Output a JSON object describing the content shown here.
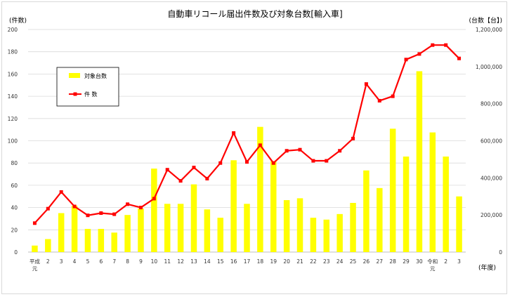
{
  "chart_data": {
    "type": "bar+line",
    "title": "自動車リコール届出件数及び対象台数[輸入車]",
    "left_axis_unit": "(件数)",
    "right_axis_unit": "(台数【台】)",
    "x_unit": "(年度)",
    "categories": [
      [
        "平成",
        "元"
      ],
      [
        "2"
      ],
      [
        "3"
      ],
      [
        "4"
      ],
      [
        "5"
      ],
      [
        "6"
      ],
      [
        "7"
      ],
      [
        "8"
      ],
      [
        "9"
      ],
      [
        "10"
      ],
      [
        "11"
      ],
      [
        "12"
      ],
      [
        "13"
      ],
      [
        "14"
      ],
      [
        "15"
      ],
      [
        "16"
      ],
      [
        "17"
      ],
      [
        "18"
      ],
      [
        "19"
      ],
      [
        "20"
      ],
      [
        "21"
      ],
      [
        "22"
      ],
      [
        "23"
      ],
      [
        "24"
      ],
      [
        "25"
      ],
      [
        "26"
      ],
      [
        "27"
      ],
      [
        "28"
      ],
      [
        "29"
      ],
      [
        "30"
      ],
      [
        "令和",
        "元"
      ],
      [
        "2"
      ],
      [
        "3"
      ]
    ],
    "series": [
      {
        "name": "対象台数",
        "axis": "right",
        "type": "bar",
        "color": "#ffff00",
        "values": [
          35000,
          70000,
          210000,
          250000,
          125000,
          125000,
          105000,
          200000,
          235000,
          450000,
          260000,
          260000,
          365000,
          230000,
          185000,
          495000,
          260000,
          675000,
          490000,
          280000,
          290000,
          185000,
          175000,
          205000,
          265000,
          440000,
          345000,
          665000,
          515000,
          975000,
          645000,
          515000,
          300000
        ]
      },
      {
        "name": "件 数",
        "axis": "left",
        "type": "line",
        "color": "#ff0000",
        "values": [
          26,
          39,
          54,
          41,
          33,
          35,
          34,
          43,
          40,
          48,
          74,
          64,
          76,
          66,
          80,
          107,
          81,
          96,
          80,
          91,
          92,
          82,
          82,
          91,
          102,
          151,
          136,
          140,
          173,
          178,
          186,
          186,
          174
        ]
      }
    ],
    "left_ticks": [
      "0",
      "20",
      "40",
      "60",
      "80",
      "100",
      "120",
      "140",
      "160",
      "180",
      "200"
    ],
    "right_ticks": [
      "0",
      "200,000",
      "400,000",
      "600,000",
      "800,000",
      "1,000,000",
      "1,200,000"
    ],
    "ylim_left": [
      0,
      200
    ],
    "ylim_right": [
      0,
      1200000
    ],
    "grid": true,
    "legend_position": "upper-left"
  }
}
